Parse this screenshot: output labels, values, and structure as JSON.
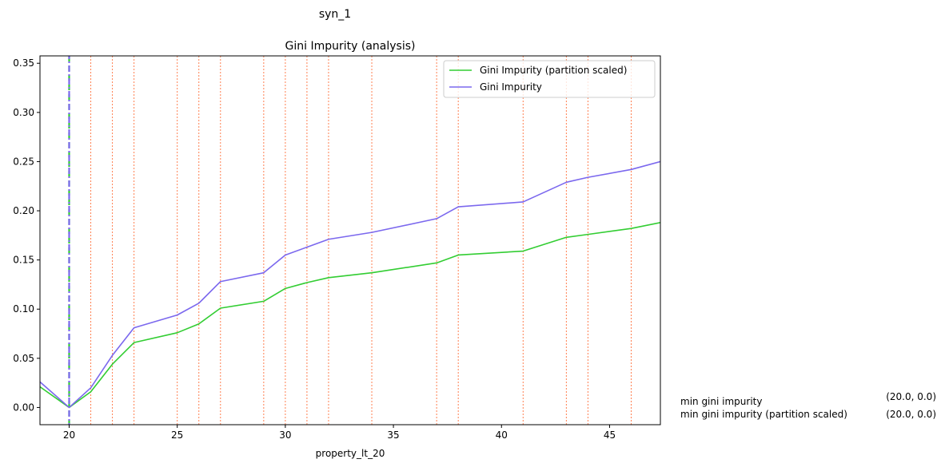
{
  "suptitle": "syn_1",
  "chart_data": {
    "type": "line",
    "title": "Gini Impurity (analysis)",
    "xlabel": "property_lt_20",
    "ylabel": "",
    "xlim": [
      18.65,
      47.35
    ],
    "ylim": [
      -0.0175,
      0.3575
    ],
    "x_ticks": [
      20,
      25,
      30,
      35,
      40,
      45
    ],
    "y_ticks": [
      0.0,
      0.05,
      0.1,
      0.15,
      0.2,
      0.25,
      0.3,
      0.35
    ],
    "x_tick_labels": [
      "20",
      "25",
      "30",
      "35",
      "40",
      "45"
    ],
    "y_tick_labels": [
      "0.00",
      "0.05",
      "0.10",
      "0.15",
      "0.20",
      "0.25",
      "0.30",
      "0.35"
    ],
    "grid": false,
    "legend_position": "top-right",
    "series": [
      {
        "name": "Gini Impurity (partition scaled)",
        "color": "#32cd32",
        "x": [
          18.65,
          20,
          21,
          22,
          23,
          25,
          26,
          27,
          29,
          30,
          31,
          32,
          34,
          37,
          38,
          41,
          43,
          44,
          46,
          47.35
        ],
        "y": [
          0.021,
          0.0,
          0.016,
          0.044,
          0.066,
          0.076,
          0.085,
          0.101,
          0.108,
          0.121,
          0.127,
          0.132,
          0.137,
          0.147,
          0.155,
          0.159,
          0.173,
          0.176,
          0.182,
          0.188
        ]
      },
      {
        "name": "Gini Impurity",
        "color": "#7b68ee",
        "x": [
          18.65,
          20,
          21,
          22,
          23,
          25,
          26,
          27,
          29,
          30,
          31,
          32,
          34,
          37,
          38,
          41,
          43,
          44,
          46,
          47.35
        ],
        "y": [
          0.026,
          0.0,
          0.02,
          0.053,
          0.081,
          0.094,
          0.106,
          0.128,
          0.137,
          0.155,
          0.163,
          0.171,
          0.178,
          0.192,
          0.204,
          0.209,
          0.229,
          0.234,
          0.242,
          0.25
        ]
      }
    ],
    "split_lines": {
      "color": "#ff7f50",
      "x": [
        21,
        22,
        23,
        25,
        26,
        27,
        29,
        30,
        31,
        32,
        34,
        37,
        38,
        41,
        43,
        44,
        46
      ]
    },
    "min_markers": [
      {
        "x": 20,
        "color": "#32cd32",
        "style": "dashed"
      },
      {
        "x": 20,
        "color": "#7b68ee",
        "style": "dashdot"
      }
    ],
    "annotations": [
      {
        "label": "min gini impurity",
        "value": "(20.0, 0.0)"
      },
      {
        "label": "min gini impurity (partition scaled)",
        "value": "(20.0, 0.0)"
      }
    ]
  }
}
